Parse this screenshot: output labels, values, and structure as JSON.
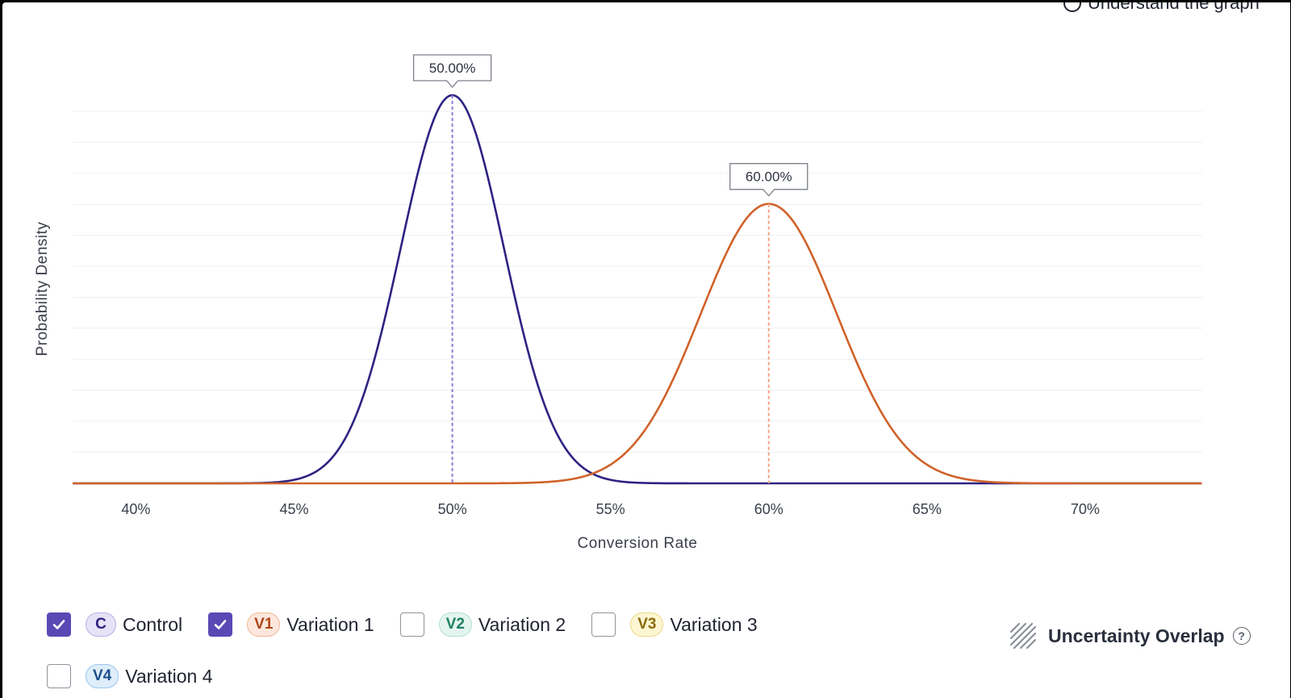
{
  "header": {
    "link_label": "Understand the graph"
  },
  "chart_data": {
    "type": "line",
    "xlabel": "Conversion Rate",
    "ylabel": "Probability Density",
    "xlim": [
      0.38,
      0.737
    ],
    "x_ticks": [
      0.4,
      0.45,
      0.5,
      0.55,
      0.6,
      0.65,
      0.7
    ],
    "x_tick_labels": [
      "40%",
      "45%",
      "50%",
      "55%",
      "60%",
      "65%",
      "70%"
    ],
    "grid": "horizontal",
    "series": [
      {
        "name": "Control",
        "mean": 0.5,
        "sd": 0.0163,
        "relative_peak": 1.0,
        "color": "#2d2382",
        "marker_color": "#8a80d6",
        "peak_label": "50.00%"
      },
      {
        "name": "Variation 1",
        "mean": 0.6,
        "sd": 0.0215,
        "relative_peak": 0.72,
        "color": "#d0622a",
        "marker_color": "#f2a485",
        "peak_label": "60.00%"
      }
    ]
  },
  "legend": {
    "items": [
      {
        "badge": "C",
        "label": "Control",
        "checked": true,
        "badge_bg": "#e7e3f7",
        "badge_border": "#b8aee6",
        "badge_fg": "#2d2382"
      },
      {
        "badge": "V1",
        "label": "Variation 1",
        "checked": true,
        "badge_bg": "#fde7dc",
        "badge_border": "#f0b897",
        "badge_fg": "#b0461a"
      },
      {
        "badge": "V2",
        "label": "Variation 2",
        "checked": false,
        "badge_bg": "#e3f5ee",
        "badge_border": "#b3e0cf",
        "badge_fg": "#1f7f64"
      },
      {
        "badge": "V3",
        "label": "Variation 3",
        "checked": false,
        "badge_bg": "#fdf6d2",
        "badge_border": "#ecd98a",
        "badge_fg": "#8a6b0a"
      },
      {
        "badge": "V4",
        "label": "Variation 4",
        "checked": false,
        "badge_bg": "#dfeefb",
        "badge_border": "#9cc5ec",
        "badge_fg": "#1d4f8a"
      }
    ]
  },
  "overlap": {
    "label": "Uncertainty Overlap",
    "help_icon": "question-circle-icon",
    "pattern_icon": "diagonal-hatch-icon"
  }
}
